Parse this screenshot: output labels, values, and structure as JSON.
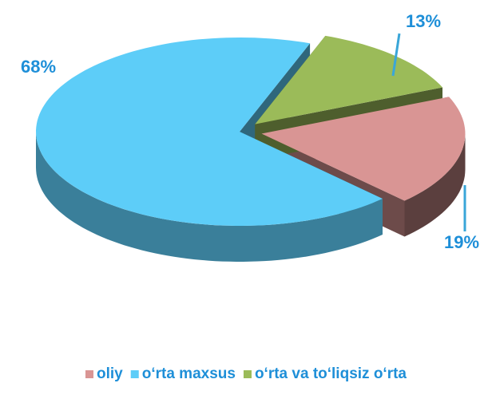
{
  "chart_data": {
    "type": "pie",
    "categories": [
      "oliy",
      "o‘rta maxsus",
      "o‘rta va to‘liqsiz o‘rta"
    ],
    "values": [
      19,
      68,
      13
    ],
    "value_labels": [
      "19%",
      "68%",
      "13%"
    ],
    "colors": [
      "#d99594",
      "#5dcdf8",
      "#9bbb59"
    ],
    "legend": "bottom"
  }
}
